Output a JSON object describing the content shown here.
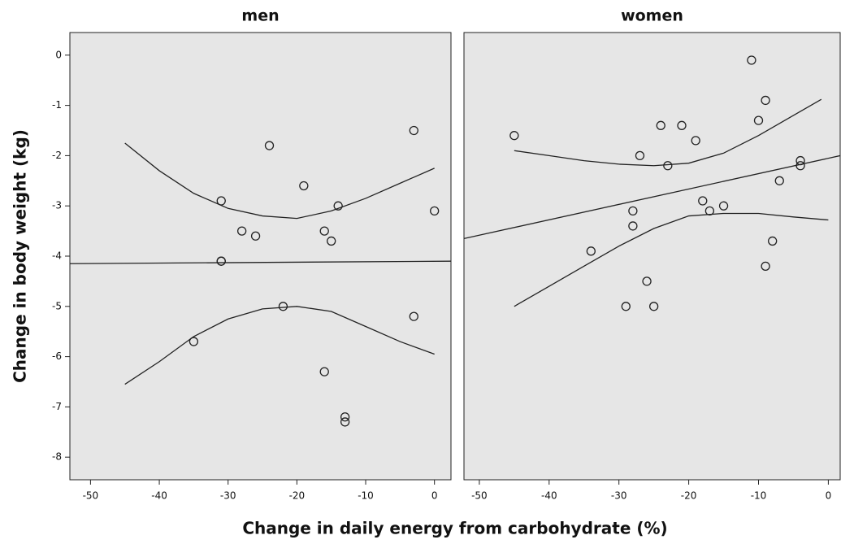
{
  "chart_data": [
    {
      "type": "scatter",
      "title": "men",
      "xlabel": "Change in daily energy from carbohydrate (%)",
      "ylabel": "Change in body weight (kg)",
      "xlim": [
        -53,
        2.4
      ],
      "ylim": [
        -8.45,
        0.45
      ],
      "xticks": [
        -50,
        -40,
        -30,
        -20,
        -10,
        0
      ],
      "yticks": [
        0,
        -1,
        -2,
        -3,
        -4,
        -5,
        -6,
        -7,
        -8
      ],
      "points": {
        "x": [
          -3,
          -24,
          -19,
          -31,
          -14,
          0,
          -28,
          -26,
          -16,
          -15,
          -31,
          -31,
          -22,
          -3,
          -35,
          -16,
          -13,
          -13
        ],
        "y": [
          -1.5,
          -1.8,
          -2.6,
          -2.9,
          -3.0,
          -3.1,
          -3.5,
          -3.6,
          -3.5,
          -3.7,
          -4.1,
          -4.1,
          -5.0,
          -5.2,
          -5.7,
          -6.3,
          -7.2,
          -7.3
        ]
      },
      "lines": [
        {
          "x": [
            -53,
            2.4
          ],
          "values": [
            -4.15,
            -4.1
          ]
        },
        {
          "x": [
            -45,
            -40,
            -35,
            -30,
            -25,
            -20,
            -15,
            -10,
            -5,
            0
          ],
          "values": [
            -1.75,
            -2.3,
            -2.75,
            -3.05,
            -3.2,
            -3.25,
            -3.1,
            -2.85,
            -2.55,
            -2.25
          ]
        },
        {
          "x": [
            -45,
            -40,
            -35,
            -30,
            -25,
            -20,
            -15,
            -10,
            -5,
            0
          ],
          "values": [
            -6.55,
            -6.1,
            -5.6,
            -5.25,
            -5.05,
            -5.0,
            -5.1,
            -5.4,
            -5.7,
            -5.95
          ]
        }
      ]
    },
    {
      "type": "scatter",
      "title": "women",
      "xlim": [
        -52.2,
        1.7
      ],
      "ylim": [
        -8.45,
        0.45
      ],
      "xticks": [
        -50,
        -40,
        -30,
        -20,
        -10,
        0
      ],
      "points": {
        "x": [
          -11,
          -9,
          -10,
          -45,
          -24,
          -21,
          -19,
          -27,
          -23,
          -4,
          -4,
          -7,
          -18,
          -15,
          -17,
          -28,
          -28,
          -34,
          -8,
          -9,
          -26,
          -29,
          -25
        ],
        "y": [
          -0.1,
          -0.9,
          -1.3,
          -1.6,
          -1.4,
          -1.4,
          -1.7,
          -2.0,
          -2.2,
          -2.1,
          -2.2,
          -2.5,
          -2.9,
          -3.0,
          -3.1,
          -3.1,
          -3.4,
          -3.9,
          -3.7,
          -4.2,
          -4.5,
          -5.0,
          -5.0
        ]
      },
      "lines": [
        {
          "x": [
            -52.2,
            1.7
          ],
          "values": [
            -3.65,
            -2.0
          ]
        },
        {
          "x": [
            -45,
            -40,
            -35,
            -30,
            -25,
            -20,
            -15,
            -10,
            -5,
            -1
          ],
          "values": [
            -1.9,
            -2.0,
            -2.1,
            -2.17,
            -2.2,
            -2.15,
            -1.95,
            -1.6,
            -1.2,
            -0.88
          ]
        },
        {
          "x": [
            -45,
            -40,
            -35,
            -30,
            -25,
            -20,
            -15,
            -10,
            -5,
            0
          ],
          "values": [
            -5.0,
            -4.6,
            -4.2,
            -3.8,
            -3.45,
            -3.2,
            -3.15,
            -3.15,
            -3.22,
            -3.28
          ]
        }
      ]
    }
  ]
}
